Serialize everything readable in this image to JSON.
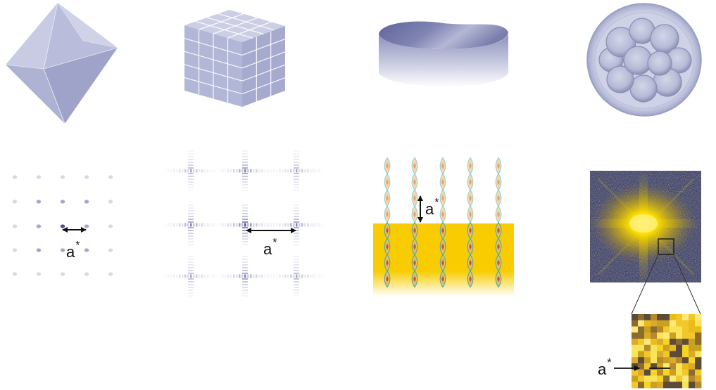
{
  "labels": [
    {
      "base": "a",
      "sup": "*"
    },
    {
      "base": "a",
      "sup": "*"
    },
    {
      "base": "a",
      "sup": "*"
    },
    {
      "base": "a",
      "sup": "*"
    }
  ],
  "colors": {
    "background": "#ffffff",
    "crystal_light": "#c9cce4",
    "crystal_mid": "#b2b6d6",
    "crystal_dark": "#9ea2c8",
    "lattice_spot": "#4d5196",
    "band_yellow": "#f8cc00",
    "rod_stroke": "#5aa7b8",
    "rod_center": "#e2451f",
    "diffraction_bg": "#3b3f6f",
    "glow_yellow": "#ffe100",
    "arrow": "#111111"
  }
}
